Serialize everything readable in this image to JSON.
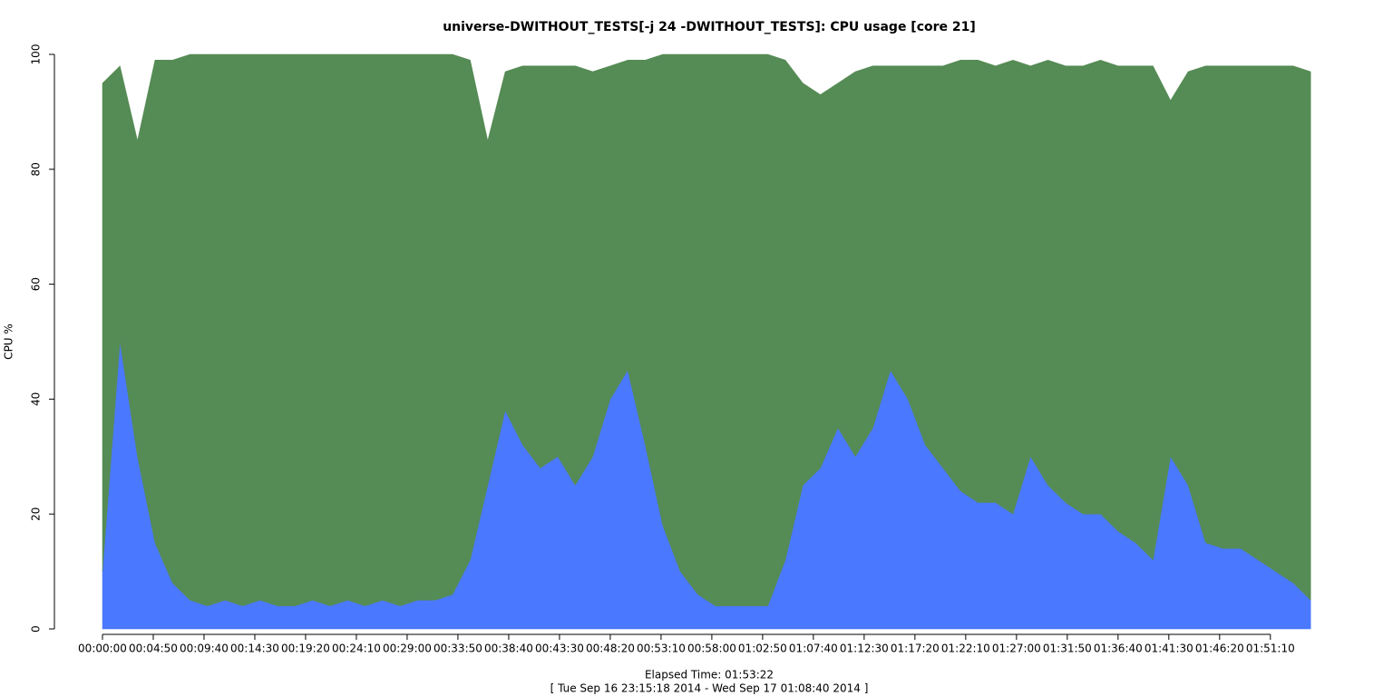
{
  "chart_data": {
    "type": "stacked_area",
    "title": "universe-DWITHOUT_TESTS[-j 24  -DWITHOUT_TESTS]: CPU usage [core 21]",
    "y_label": "CPU %",
    "x_label": "Elapsed Time: 01:53:22",
    "subtitle": "[ Tue Sep 16 23:15:18 2014 - Wed Sep 17 01:08:40 2014 ]",
    "x": [
      0,
      100,
      200,
      300,
      400,
      500,
      600,
      700,
      800,
      900,
      1000,
      1100,
      1200,
      1300,
      1400,
      1500,
      1600,
      1700,
      1800,
      1900,
      2000,
      2100,
      2200,
      2300,
      2400,
      2500,
      2600,
      2700,
      2800,
      2900,
      3000,
      3100,
      3200,
      3300,
      3400,
      3500,
      3600,
      3700,
      3800,
      3900,
      4000,
      4100,
      4200,
      4300,
      4400,
      4500,
      4600,
      4700,
      4800,
      4900,
      5000,
      5100,
      5200,
      5300,
      5400,
      5500,
      5600,
      5700,
      5800,
      5900,
      6000,
      6100,
      6200,
      6300,
      6400,
      6500,
      6600,
      6700,
      6800,
      6900
    ],
    "series": [
      {
        "color": "#4a78ff",
        "values": [
          10,
          50,
          30,
          15,
          8,
          5,
          4,
          5,
          4,
          5,
          4,
          4,
          5,
          4,
          5,
          4,
          5,
          4,
          5,
          5,
          6,
          12,
          25,
          38,
          32,
          28,
          30,
          25,
          30,
          40,
          45,
          32,
          18,
          10,
          6,
          4,
          4,
          4,
          4,
          12,
          25,
          28,
          35,
          30,
          35,
          45,
          40,
          32,
          28,
          24,
          22,
          22,
          20,
          30,
          25,
          22,
          20,
          20,
          17,
          15,
          12,
          30,
          25,
          15,
          14,
          14,
          12,
          10,
          8,
          5
        ]
      },
      {
        "color": "#558b55",
        "values": [
          85,
          48,
          55,
          84,
          91,
          95,
          96,
          95,
          96,
          95,
          96,
          96,
          95,
          96,
          95,
          96,
          95,
          96,
          95,
          95,
          94,
          87,
          60,
          59,
          66,
          70,
          68,
          73,
          67,
          58,
          54,
          67,
          82,
          90,
          94,
          96,
          96,
          96,
          96,
          87,
          70,
          65,
          60,
          67,
          63,
          53,
          58,
          66,
          70,
          75,
          77,
          76,
          79,
          68,
          74,
          76,
          78,
          79,
          81,
          83,
          86,
          62,
          72,
          83,
          84,
          84,
          86,
          88,
          90,
          92
        ]
      }
    ],
    "xlim": [
      0,
      6930
    ],
    "xticks": [
      {
        "value": 0,
        "label": "00:00:00"
      },
      {
        "value": 290,
        "label": "00:04:50"
      },
      {
        "value": 580,
        "label": "00:09:40"
      },
      {
        "value": 870,
        "label": "00:14:30"
      },
      {
        "value": 1160,
        "label": "00:19:20"
      },
      {
        "value": 1450,
        "label": "00:24:10"
      },
      {
        "value": 1740,
        "label": "00:29:00"
      },
      {
        "value": 2030,
        "label": "00:33:50"
      },
      {
        "value": 2320,
        "label": "00:38:40"
      },
      {
        "value": 2610,
        "label": "00:43:30"
      },
      {
        "value": 2900,
        "label": "00:48:20"
      },
      {
        "value": 3190,
        "label": "00:53:10"
      },
      {
        "value": 3480,
        "label": "00:58:00"
      },
      {
        "value": 3770,
        "label": "01:02:50"
      },
      {
        "value": 4060,
        "label": "01:07:40"
      },
      {
        "value": 4350,
        "label": "01:12:30"
      },
      {
        "value": 4640,
        "label": "01:17:20"
      },
      {
        "value": 4930,
        "label": "01:22:10"
      },
      {
        "value": 5220,
        "label": "01:27:00"
      },
      {
        "value": 5510,
        "label": "01:31:50"
      },
      {
        "value": 5800,
        "label": "01:36:40"
      },
      {
        "value": 6090,
        "label": "01:41:30"
      },
      {
        "value": 6380,
        "label": "01:46:20"
      },
      {
        "value": 6670,
        "label": "01:51:10"
      }
    ],
    "ylim": [
      0,
      100
    ],
    "yticks": [
      0,
      20,
      40,
      60,
      80,
      100
    ]
  }
}
